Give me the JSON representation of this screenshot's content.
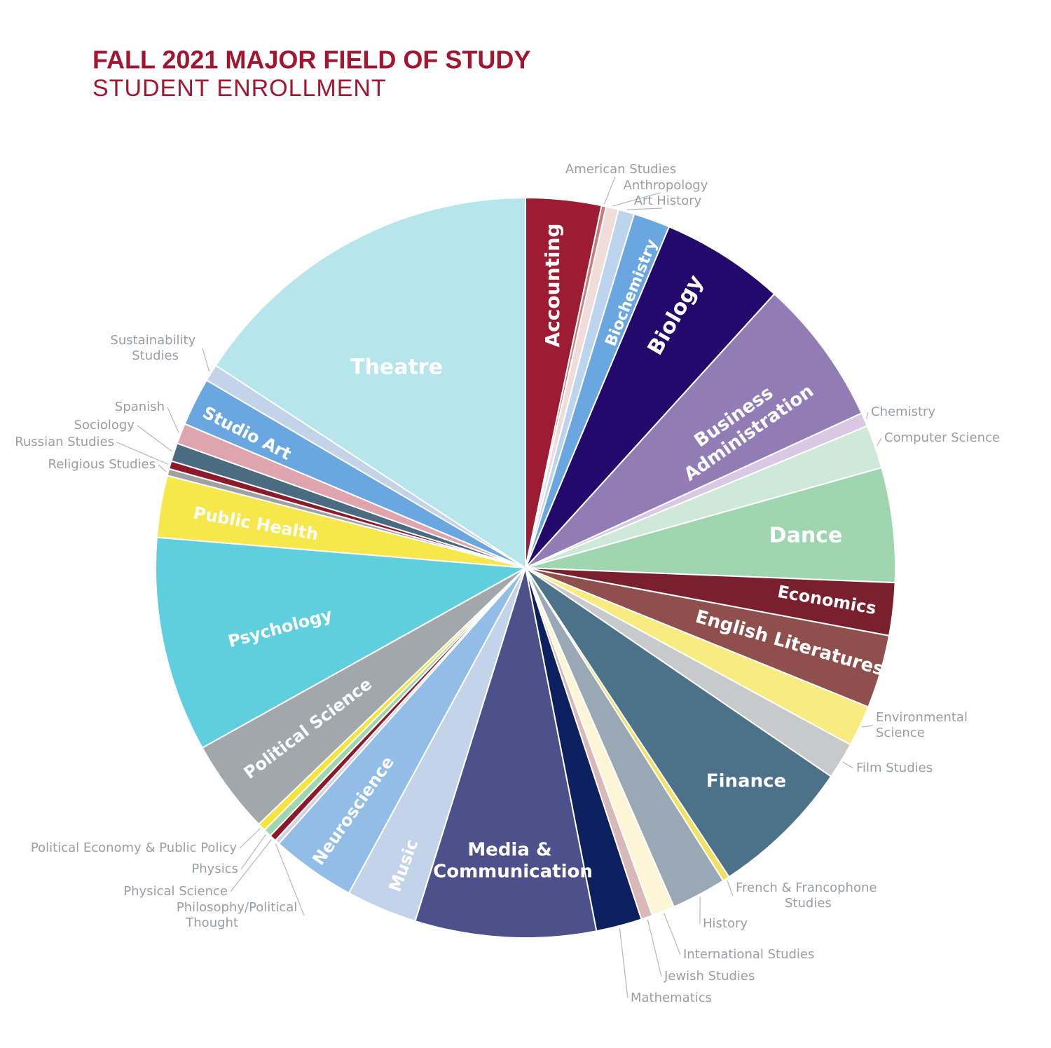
{
  "chart_data": {
    "type": "pie",
    "title": "FALL 2021 MAJOR FIELD OF STUDY",
    "subtitle": "STUDENT ENROLLMENT",
    "categories": [
      "Accounting",
      "American Studies",
      "Anthropology",
      "Art History",
      "Biochemistry",
      "Biology",
      "Business Administration",
      "Chemistry",
      "Computer Science",
      "Dance",
      "Economics",
      "English Literatures",
      "Environmental Science",
      "Film Studies",
      "Finance",
      "French & Francophone Studies",
      "History",
      "International Studies",
      "Jewish Studies",
      "Mathematics",
      "Media & Communication",
      "Music",
      "Neuroscience",
      "Philosophy/Political Thought",
      "Physical Science",
      "Physics",
      "Political Economy & Public Policy",
      "Political Science",
      "Psychology",
      "Public Health",
      "Religious Studies",
      "Russian Studies",
      "Sociology",
      "Spanish",
      "Studio Art",
      "Sustainability Studies",
      "Theatre"
    ],
    "values": [
      3.3,
      0.2,
      0.55,
      0.7,
      1.6,
      5.4,
      6.4,
      0.6,
      1.9,
      5.0,
      2.3,
      3.2,
      1.8,
      1.6,
      6.2,
      0.3,
      2.4,
      1.0,
      0.5,
      2.0,
      7.9,
      3.1,
      3.7,
      0.2,
      0.3,
      0.35,
      0.35,
      4.1,
      9.4,
      2.7,
      0.3,
      0.35,
      0.8,
      0.9,
      2.1,
      0.75,
      15.8
    ],
    "colors": [
      "#9e1c33",
      "#c97a7a",
      "#f0dcd8",
      "#bcd4ee",
      "#6aa7e0",
      "#22096b",
      "#917cb5",
      "#d8c8e3",
      "#cfe9d8",
      "#9fd6b0",
      "#7a1f2e",
      "#8e4f4d",
      "#f8ec80",
      "#c8c9cb",
      "#4b7289",
      "#f2e060",
      "#9aa8b5",
      "#fdf6d6",
      "#d8b8b8",
      "#0c1f5e",
      "#4c508b",
      "#c3d3ea",
      "#92bde6",
      "#d7d0e4",
      "#8c1a2a",
      "#9fd6b0",
      "#f5e43c",
      "#a1a7aa",
      "#5fcfde",
      "#f6e84a",
      "#a0a0a0",
      "#8c1a2a",
      "#4b6b80",
      "#dea5ae",
      "#6aa7e0",
      "#c3d3ea",
      "#b6e6ec"
    ]
  }
}
